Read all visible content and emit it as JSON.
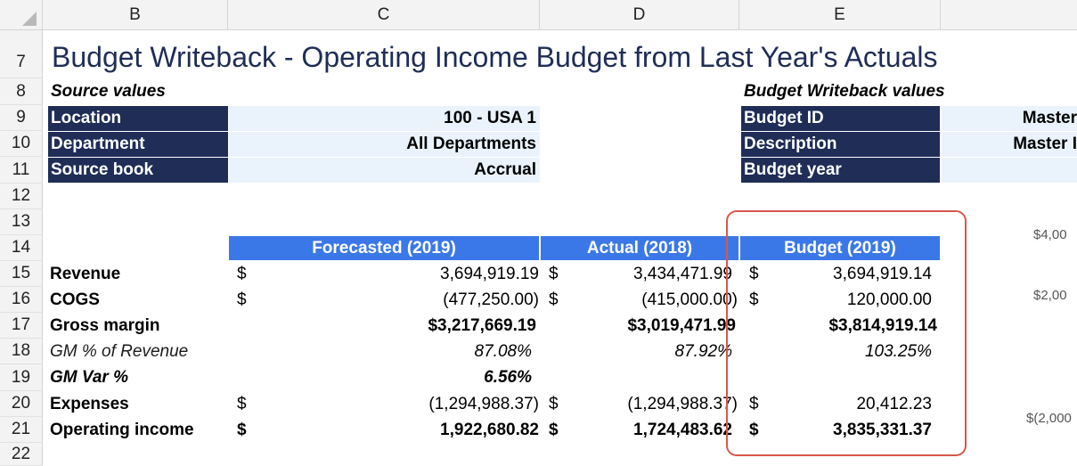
{
  "columns": [
    "B",
    "C",
    "D",
    "E"
  ],
  "rows": [
    "7",
    "8",
    "9",
    "10",
    "11",
    "12",
    "13",
    "14",
    "15",
    "16",
    "17",
    "18",
    "19",
    "20",
    "21",
    "22"
  ],
  "title": "Budget Writeback - Operating Income Budget from Last Year's Actuals",
  "source": {
    "header": "Source values",
    "location_label": "Location",
    "location_value": "100 - USA 1",
    "department_label": "Department",
    "department_value": "All Departments",
    "book_label": "Source book",
    "book_value": "Accrual"
  },
  "writeback": {
    "header": "Budget Writeback values",
    "budget_id_label": "Budget ID",
    "budget_id_value": "Master",
    "description_label": "Description",
    "description_value": "Master I",
    "budget_year_label": "Budget year"
  },
  "table": {
    "col_forecast": "Forecasted (2019)",
    "col_actual": "Actual (2018)",
    "col_budget": "Budget (2019)",
    "currency": "$",
    "rows": {
      "revenue": {
        "label": "Revenue",
        "forecast": "3,694,919.19",
        "actual": "3,434,471.99",
        "budget": "3,694,919.14"
      },
      "cogs": {
        "label": "COGS",
        "forecast": "(477,250.00)",
        "actual": "(415,000.00)",
        "budget": "120,000.00"
      },
      "gross": {
        "label": "Gross margin",
        "forecast": "$3,217,669.19",
        "actual": "$3,019,471.99",
        "budget": "$3,814,919.14"
      },
      "gm_pct": {
        "label": "GM % of Revenue",
        "forecast": "87.08%",
        "actual": "87.92%",
        "budget": "103.25%"
      },
      "gm_var": {
        "label": "GM Var %",
        "forecast": "6.56%"
      },
      "expenses": {
        "label": "Expenses",
        "forecast": "(1,294,988.37)",
        "actual": "(1,294,988.37)",
        "budget": "20,412.23"
      },
      "opinc": {
        "label": "Operating income",
        "forecast": "1,922,680.82",
        "actual": "1,724,483.62",
        "budget": "3,835,331.37"
      }
    }
  },
  "side_chart_labels": [
    "$4,00",
    "$2,00",
    "$(2,000"
  ],
  "highlight_color": "#d9574a"
}
